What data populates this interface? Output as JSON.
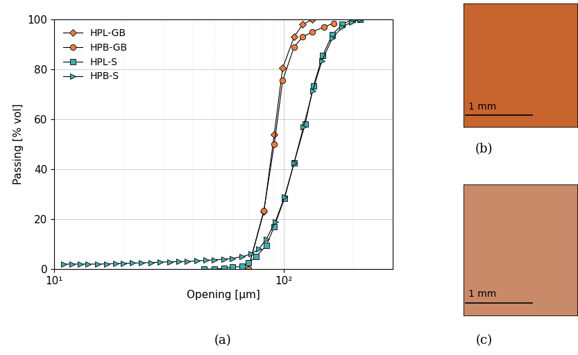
{
  "chart_data": {
    "type": "line",
    "caption": "(a)",
    "x_label": "Opening [µm]",
    "y_label": "Passing [% vol]",
    "log": "x",
    "grid": true,
    "legend": "upper left",
    "xlim": [
      10,
      300
    ],
    "xticks": [
      {
        "value": 10,
        "label": "10¹"
      },
      {
        "value": 100,
        "label": "10²"
      }
    ],
    "ylim": [
      0,
      100
    ],
    "yticks": [
      0,
      20,
      40,
      60,
      80,
      100
    ],
    "series": [
      {
        "name": "HPL-GB",
        "color": "#f07d3a",
        "marker": "diamond",
        "x": [
          70,
          82,
          91,
          99,
          111,
          121,
          133
        ],
        "values": [
          0,
          23,
          54,
          80.5,
          93,
          98,
          100
        ]
      },
      {
        "name": "HPB-GB",
        "color": "#f07d3a",
        "marker": "circle",
        "x": [
          70,
          82,
          91,
          99,
          111,
          121,
          133,
          150,
          165
        ],
        "values": [
          0,
          23.5,
          50,
          75.5,
          89,
          93,
          95,
          97,
          98.5
        ]
      },
      {
        "name": "HPL-S",
        "color": "#3cb0b0",
        "marker": "square",
        "x": [
          45,
          50,
          55,
          60,
          66,
          70,
          76,
          84,
          91,
          101,
          111,
          124,
          135,
          148,
          163,
          180,
          199,
          215
        ],
        "values": [
          0,
          0,
          0.3,
          0.8,
          1,
          2.5,
          5,
          9.5,
          17,
          28.5,
          42.5,
          58,
          73.5,
          85.5,
          94,
          98,
          100,
          100
        ]
      },
      {
        "name": "HPB-S",
        "color": "#3cb0b0",
        "marker": "triangle_right",
        "x": [
          11,
          12,
          13,
          14,
          15.5,
          17,
          18.5,
          20,
          22,
          24,
          26.5,
          29,
          32,
          35,
          38,
          42,
          46,
          50,
          55,
          60,
          66,
          72,
          78,
          84,
          92,
          101,
          111,
          122,
          134,
          147,
          163,
          180,
          198,
          215
        ],
        "values": [
          2,
          2,
          2,
          2,
          2,
          2.1,
          2.2,
          2.3,
          2.4,
          2.5,
          2.6,
          2.8,
          2.9,
          3,
          3.1,
          3.3,
          3.5,
          3.7,
          4,
          4.3,
          5,
          6,
          8,
          12,
          19,
          29,
          42.5,
          57,
          71.5,
          83.5,
          92.5,
          97,
          99,
          100
        ]
      }
    ]
  },
  "images": [
    {
      "caption": "(b)",
      "scale_bar": "1 mm",
      "color": "#c8652e"
    },
    {
      "caption": "(c)",
      "scale_bar": "1 mm",
      "color": "#c98a6a"
    }
  ]
}
